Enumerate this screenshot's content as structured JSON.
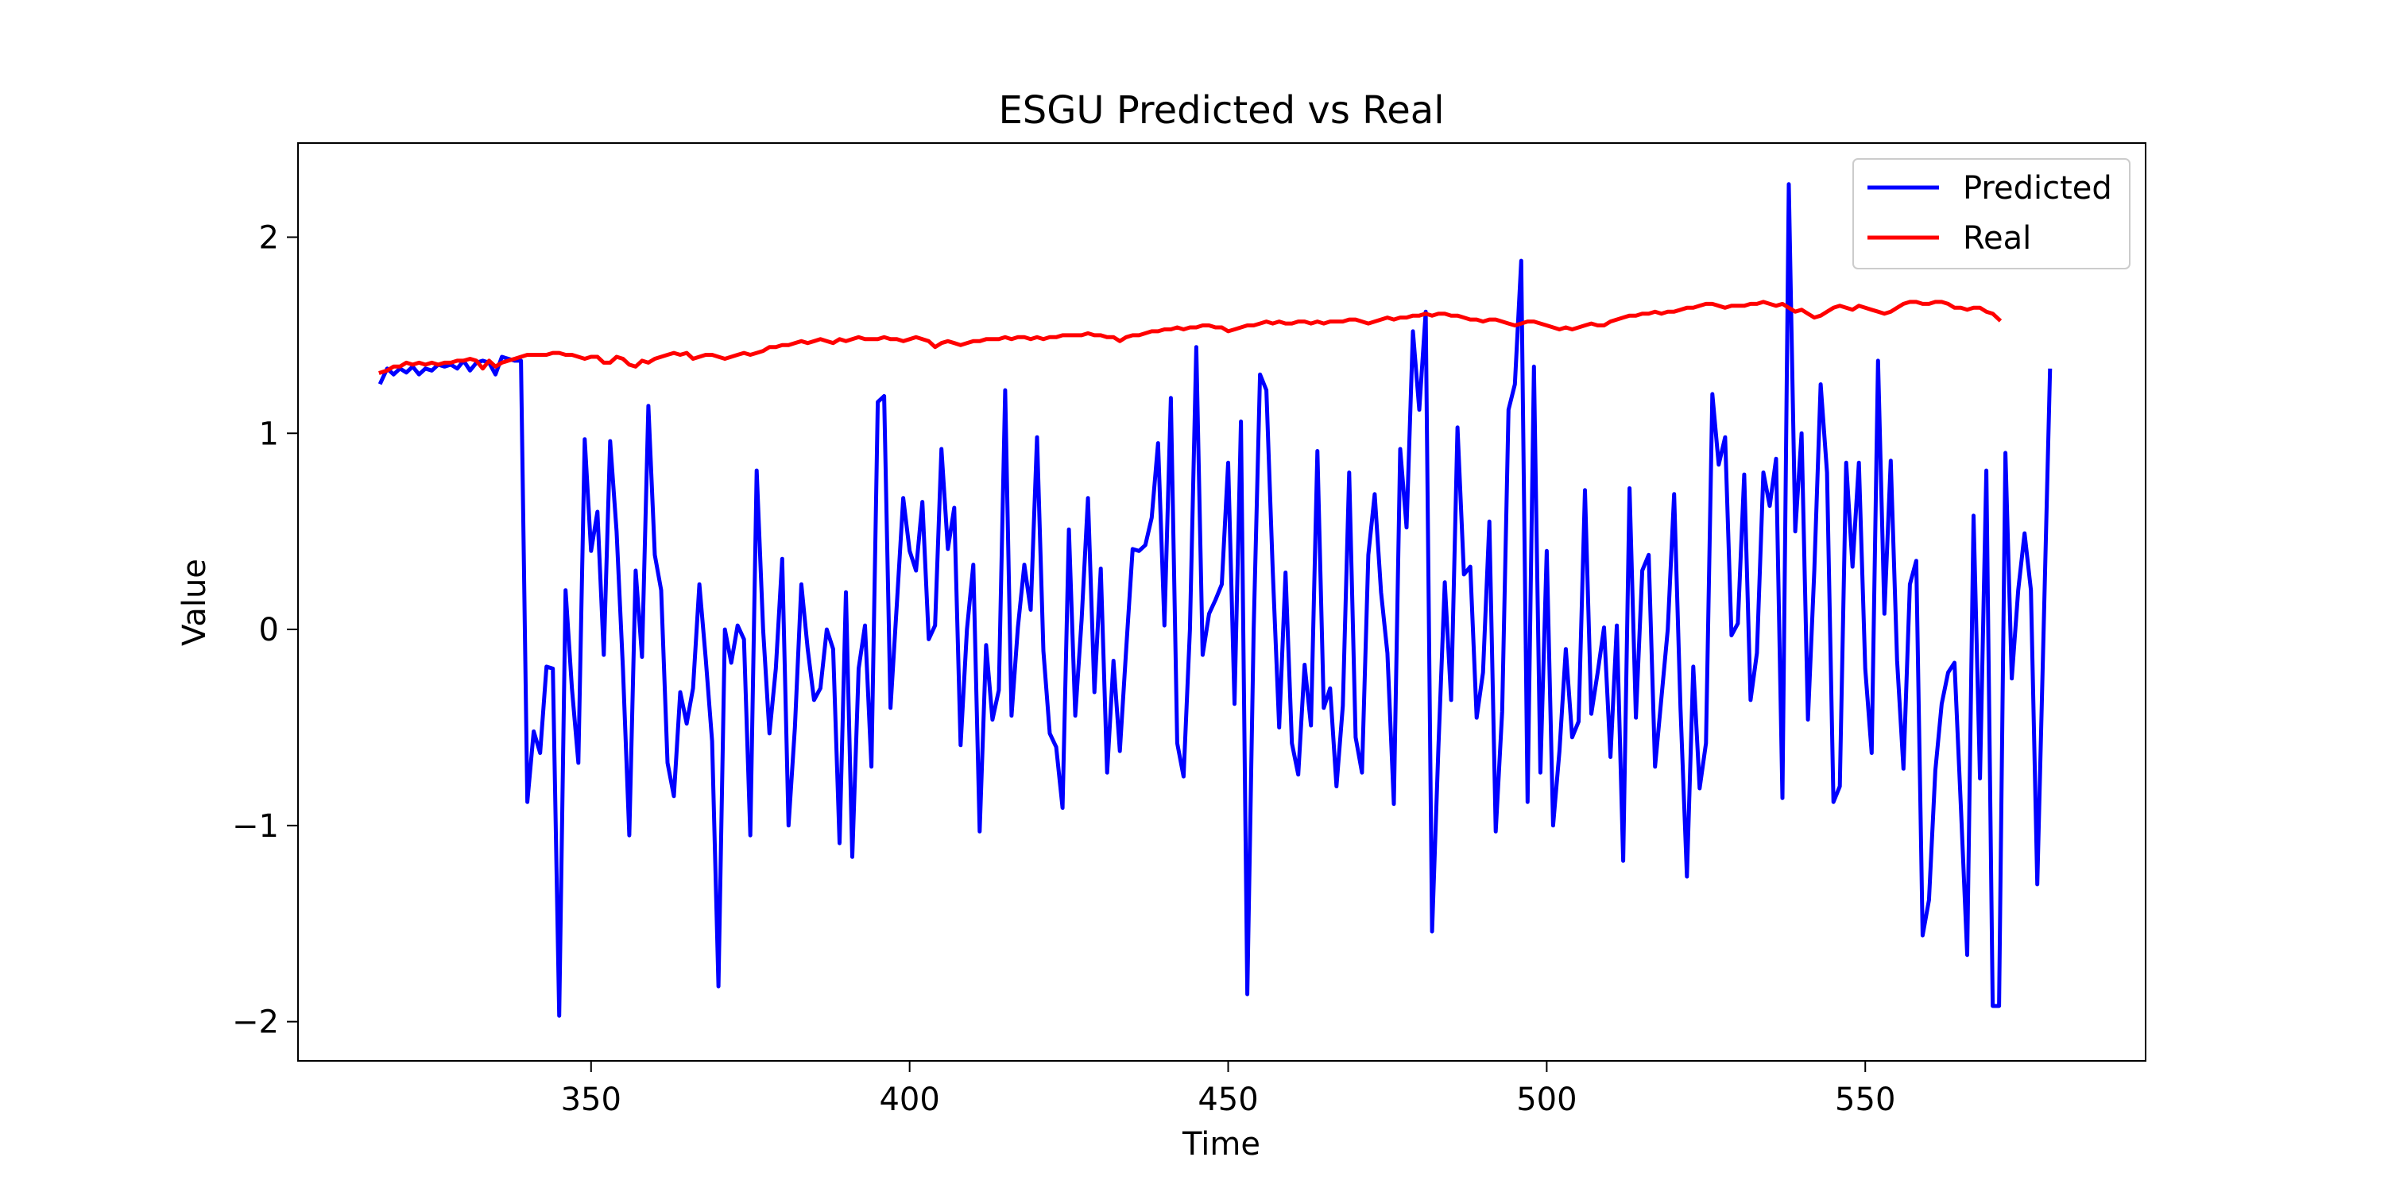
{
  "chart_data": {
    "type": "line",
    "title": "ESGU Predicted vs Real",
    "xlabel": "Time",
    "ylabel": "Value",
    "xlim": [
      304,
      594
    ],
    "ylim": [
      -2.2,
      2.48
    ],
    "xticks": [
      350,
      400,
      450,
      500,
      550
    ],
    "yticks": [
      -2,
      -1,
      0,
      1,
      2
    ],
    "ytick_labels": [
      "−2",
      "−1",
      "0",
      "1",
      "2"
    ],
    "grid": false,
    "legend_position": "upper right",
    "series": [
      {
        "name": "Predicted",
        "color": "#0000ff",
        "x_start": 317,
        "values": [
          1.26,
          1.33,
          1.3,
          1.33,
          1.31,
          1.34,
          1.3,
          1.33,
          1.32,
          1.35,
          1.34,
          1.35,
          1.33,
          1.37,
          1.32,
          1.36,
          1.37,
          1.36,
          1.3,
          1.39,
          1.38,
          1.37,
          1.37,
          -0.88,
          -0.52,
          -0.63,
          -0.19,
          -0.2,
          -1.97,
          0.2,
          -0.3,
          -0.68,
          0.97,
          0.4,
          0.6,
          -0.13,
          0.96,
          0.5,
          -0.2,
          -1.05,
          0.3,
          -0.14,
          1.14,
          0.38,
          0.2,
          -0.68,
          -0.85,
          -0.32,
          -0.48,
          -0.3,
          0.23,
          -0.15,
          -0.57,
          -1.82,
          0.0,
          -0.17,
          0.02,
          -0.05,
          -1.05,
          0.81,
          0.0,
          -0.53,
          -0.2,
          0.36,
          -1.0,
          -0.5,
          0.23,
          -0.1,
          -0.36,
          -0.3,
          0.0,
          -0.1,
          -1.09,
          0.19,
          -1.16,
          -0.2,
          0.02,
          -0.7,
          1.16,
          1.19,
          -0.4,
          0.13,
          0.67,
          0.4,
          0.3,
          0.65,
          -0.05,
          0.02,
          0.92,
          0.41,
          0.62,
          -0.59,
          0.0,
          0.33,
          -1.03,
          -0.08,
          -0.46,
          -0.31,
          1.22,
          -0.44,
          0.01,
          0.33,
          0.1,
          0.98,
          -0.11,
          -0.53,
          -0.6,
          -0.91,
          0.51,
          -0.44,
          0.05,
          0.67,
          -0.32,
          0.31,
          -0.73,
          -0.16,
          -0.62,
          -0.1,
          0.41,
          0.4,
          0.43,
          0.57,
          0.95,
          0.02,
          1.18,
          -0.58,
          -0.75,
          0.0,
          1.44,
          -0.13,
          0.08,
          0.15,
          0.23,
          0.85,
          -0.38,
          1.06,
          -1.86,
          0.0,
          1.3,
          1.22,
          0.3,
          -0.5,
          0.29,
          -0.58,
          -0.74,
          -0.18,
          -0.49,
          0.91,
          -0.4,
          -0.3,
          -0.8,
          -0.39,
          0.8,
          -0.55,
          -0.73,
          0.38,
          0.69,
          0.19,
          -0.12,
          -0.89,
          0.92,
          0.52,
          1.52,
          1.12,
          1.62,
          -1.54,
          -0.6,
          0.24,
          -0.36,
          1.03,
          0.28,
          0.32,
          -0.45,
          -0.22,
          0.55,
          -1.03,
          -0.42,
          1.12,
          1.25,
          1.88,
          -0.88,
          1.34,
          -0.73,
          0.4,
          -1.0,
          -0.62,
          -0.1,
          -0.55,
          -0.47,
          0.71,
          -0.43,
          -0.22,
          0.01,
          -0.65,
          0.02,
          -1.18,
          0.72,
          -0.45,
          0.3,
          0.38,
          -0.7,
          -0.35,
          0.0,
          0.69,
          -0.4,
          -1.26,
          -0.19,
          -0.81,
          -0.58,
          1.2,
          0.84,
          0.98,
          -0.03,
          0.03,
          0.79,
          -0.36,
          -0.12,
          0.8,
          0.63,
          0.87,
          -0.86,
          2.27,
          0.5,
          1.0,
          -0.46,
          0.3,
          1.25,
          0.8,
          -0.88,
          -0.8,
          0.85,
          0.32,
          0.85,
          -0.2,
          -0.63,
          1.37,
          0.08,
          0.86,
          -0.16,
          -0.71,
          0.23,
          0.35,
          -1.56,
          -1.38,
          -0.72,
          -0.38,
          -0.22,
          -0.17,
          -0.9,
          -1.66,
          0.58,
          -0.76,
          0.81,
          -1.92,
          -1.92,
          0.9,
          -0.25,
          0.2,
          0.49,
          0.2,
          -1.3,
          0.0,
          1.32
        ]
      },
      {
        "name": "Real",
        "color": "#ff0000",
        "x_start": 317,
        "values": [
          1.31,
          1.32,
          1.34,
          1.34,
          1.36,
          1.35,
          1.36,
          1.35,
          1.36,
          1.35,
          1.36,
          1.36,
          1.37,
          1.37,
          1.38,
          1.37,
          1.33,
          1.37,
          1.34,
          1.36,
          1.37,
          1.38,
          1.39,
          1.4,
          1.4,
          1.4,
          1.4,
          1.41,
          1.41,
          1.4,
          1.4,
          1.39,
          1.38,
          1.39,
          1.39,
          1.36,
          1.36,
          1.39,
          1.38,
          1.35,
          1.34,
          1.37,
          1.36,
          1.38,
          1.39,
          1.4,
          1.41,
          1.4,
          1.41,
          1.38,
          1.39,
          1.4,
          1.4,
          1.39,
          1.38,
          1.39,
          1.4,
          1.41,
          1.4,
          1.41,
          1.42,
          1.44,
          1.44,
          1.45,
          1.45,
          1.46,
          1.47,
          1.46,
          1.47,
          1.48,
          1.47,
          1.46,
          1.48,
          1.47,
          1.48,
          1.49,
          1.48,
          1.48,
          1.48,
          1.49,
          1.48,
          1.48,
          1.47,
          1.48,
          1.49,
          1.48,
          1.47,
          1.44,
          1.46,
          1.47,
          1.46,
          1.45,
          1.46,
          1.47,
          1.47,
          1.48,
          1.48,
          1.48,
          1.49,
          1.48,
          1.49,
          1.49,
          1.48,
          1.49,
          1.48,
          1.49,
          1.49,
          1.5,
          1.5,
          1.5,
          1.5,
          1.51,
          1.5,
          1.5,
          1.49,
          1.49,
          1.47,
          1.49,
          1.5,
          1.5,
          1.51,
          1.52,
          1.52,
          1.53,
          1.53,
          1.54,
          1.53,
          1.54,
          1.54,
          1.55,
          1.55,
          1.54,
          1.54,
          1.52,
          1.53,
          1.54,
          1.55,
          1.55,
          1.56,
          1.57,
          1.56,
          1.57,
          1.56,
          1.56,
          1.57,
          1.57,
          1.56,
          1.57,
          1.56,
          1.57,
          1.57,
          1.57,
          1.58,
          1.58,
          1.57,
          1.56,
          1.57,
          1.58,
          1.59,
          1.58,
          1.59,
          1.59,
          1.6,
          1.6,
          1.61,
          1.6,
          1.61,
          1.61,
          1.6,
          1.6,
          1.59,
          1.58,
          1.58,
          1.57,
          1.58,
          1.58,
          1.57,
          1.56,
          1.55,
          1.56,
          1.57,
          1.57,
          1.56,
          1.55,
          1.54,
          1.53,
          1.54,
          1.53,
          1.54,
          1.55,
          1.56,
          1.55,
          1.55,
          1.57,
          1.58,
          1.59,
          1.6,
          1.6,
          1.61,
          1.61,
          1.62,
          1.61,
          1.62,
          1.62,
          1.63,
          1.64,
          1.64,
          1.65,
          1.66,
          1.66,
          1.65,
          1.64,
          1.65,
          1.65,
          1.65,
          1.66,
          1.66,
          1.67,
          1.66,
          1.65,
          1.66,
          1.64,
          1.62,
          1.63,
          1.61,
          1.59,
          1.6,
          1.62,
          1.64,
          1.65,
          1.64,
          1.63,
          1.65,
          1.64,
          1.63,
          1.62,
          1.61,
          1.62,
          1.64,
          1.66,
          1.67,
          1.67,
          1.66,
          1.66,
          1.67,
          1.67,
          1.66,
          1.64,
          1.64,
          1.63,
          1.64,
          1.64,
          1.62,
          1.61,
          1.58
        ]
      }
    ]
  }
}
